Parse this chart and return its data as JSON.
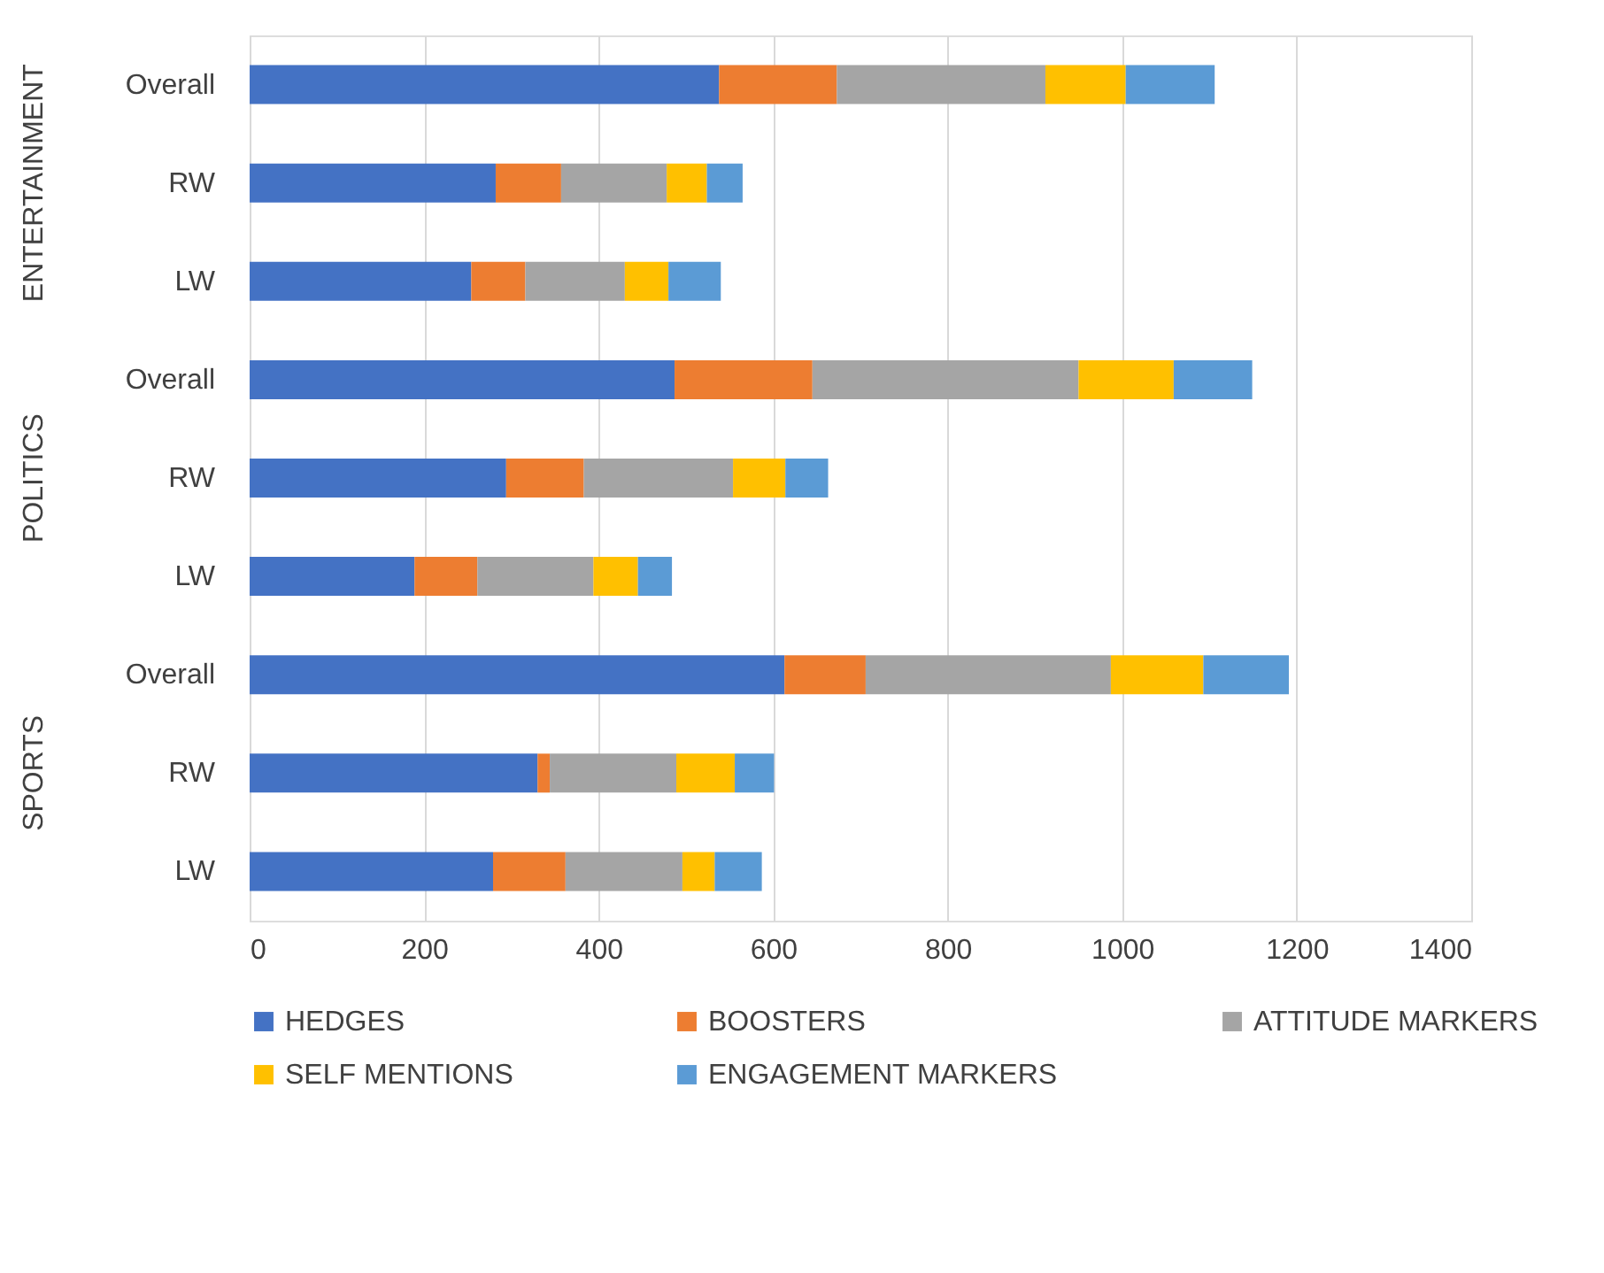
{
  "chart_data": {
    "type": "bar",
    "orientation": "horizontal",
    "stacked": true,
    "categories": [
      "Overall",
      "RW",
      "LW",
      "Overall",
      "RW",
      "LW",
      "Overall",
      "RW",
      "LW"
    ],
    "annotations": [
      "ENTERTAINMENT",
      "POLITICS",
      "SPORTS"
    ],
    "series": [
      {
        "name": "HEDGES",
        "color": "#4472c4",
        "values": [
          538,
          282,
          254,
          487,
          294,
          189,
          613,
          330,
          279
        ]
      },
      {
        "name": "BOOSTERS",
        "color": "#ed7d31",
        "values": [
          135,
          75,
          62,
          158,
          89,
          72,
          93,
          14,
          83
        ]
      },
      {
        "name": "ATTITUDE MARKERS",
        "color": "#a5a5a5",
        "values": [
          239,
          121,
          114,
          305,
          171,
          133,
          281,
          145,
          134
        ]
      },
      {
        "name": "SELF MENTIONS",
        "color": "#ffc000",
        "values": [
          92,
          46,
          50,
          109,
          60,
          51,
          106,
          67,
          37
        ]
      },
      {
        "name": "ENGAGEMENT MARKERS",
        "color": "#5b9bd5",
        "values": [
          102,
          41,
          60,
          90,
          49,
          39,
          98,
          45,
          54
        ]
      }
    ],
    "xlim": [
      0,
      1400
    ],
    "xticks": [
      0,
      200,
      400,
      600,
      800,
      1000,
      1200,
      1400
    ],
    "grid": "x",
    "legend": "bottom"
  }
}
